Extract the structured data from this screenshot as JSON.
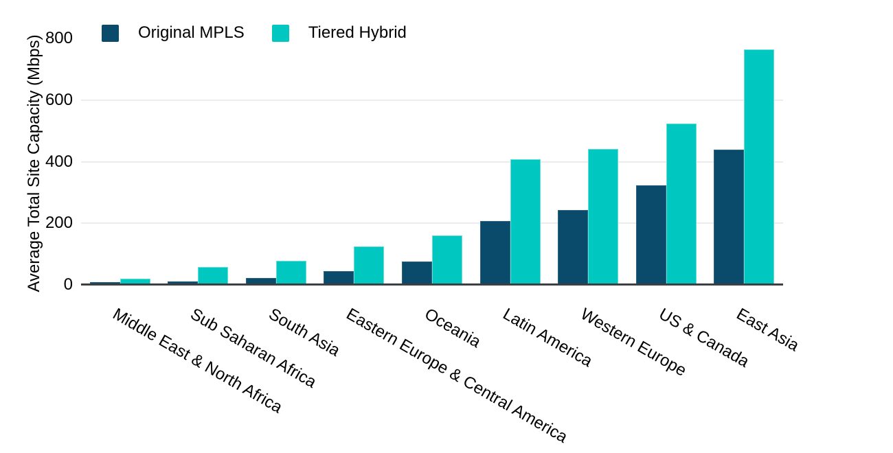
{
  "chart_data": {
    "type": "bar",
    "title": "",
    "xlabel": "",
    "ylabel": "Average Total Site Capacity (Mbps)",
    "categories": [
      "Middle East & North Africa",
      "Sub Saharan Africa",
      "South Asia",
      "Eastern Europe & Central America",
      "Oceania",
      "Latin America",
      "Western Europe",
      "US & Canada",
      "East Asia"
    ],
    "series": [
      {
        "name": "Original MPLS",
        "color": "#0A4A6B",
        "values": [
          8,
          12,
          23,
          44,
          76,
          207,
          242,
          323,
          440
        ]
      },
      {
        "name": "Tiered Hybrid",
        "color": "#00C8C1",
        "values": [
          19,
          58,
          78,
          125,
          160,
          409,
          442,
          524,
          764
        ]
      }
    ],
    "ylim": [
      0,
      800
    ],
    "yticks": [
      0,
      200,
      400,
      600,
      800
    ],
    "gridlines_at": [
      200,
      400,
      600
    ],
    "grid": "horizontal",
    "legend_position": "top-left",
    "bar_grouping": "grouped"
  },
  "colors": {
    "background": "#ffffff",
    "axis_line": "#3d4043",
    "gridline": "#ececec",
    "text": "#000000",
    "series_original_mpls": "#0A4A6B",
    "series_tiered_hybrid": "#00C8C1"
  }
}
